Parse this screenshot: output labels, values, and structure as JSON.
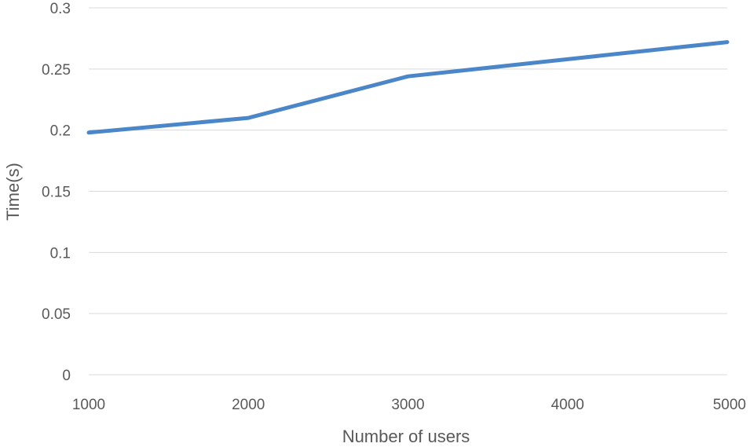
{
  "chart_data": {
    "type": "line",
    "title": "",
    "xlabel": "Number of users",
    "ylabel": "Time(s)",
    "x": [
      1000,
      2000,
      3000,
      4000,
      5000
    ],
    "x_tick_labels": [
      "1000",
      "2000",
      "3000",
      "4000",
      "5000"
    ],
    "y_ticks": [
      0,
      0.05,
      0.1,
      0.15,
      0.2,
      0.25,
      0.3
    ],
    "y_tick_labels": [
      "0",
      "0.05",
      "0.1",
      "0.15",
      "0.2",
      "0.25",
      "0.3"
    ],
    "ylim": [
      0,
      0.3
    ],
    "xlim": [
      1000,
      5000
    ],
    "grid": true,
    "legend": "none",
    "series": [
      {
        "values": [
          0.198,
          0.21,
          0.244,
          0.258,
          0.272
        ],
        "color": "#4a86c8"
      }
    ]
  }
}
